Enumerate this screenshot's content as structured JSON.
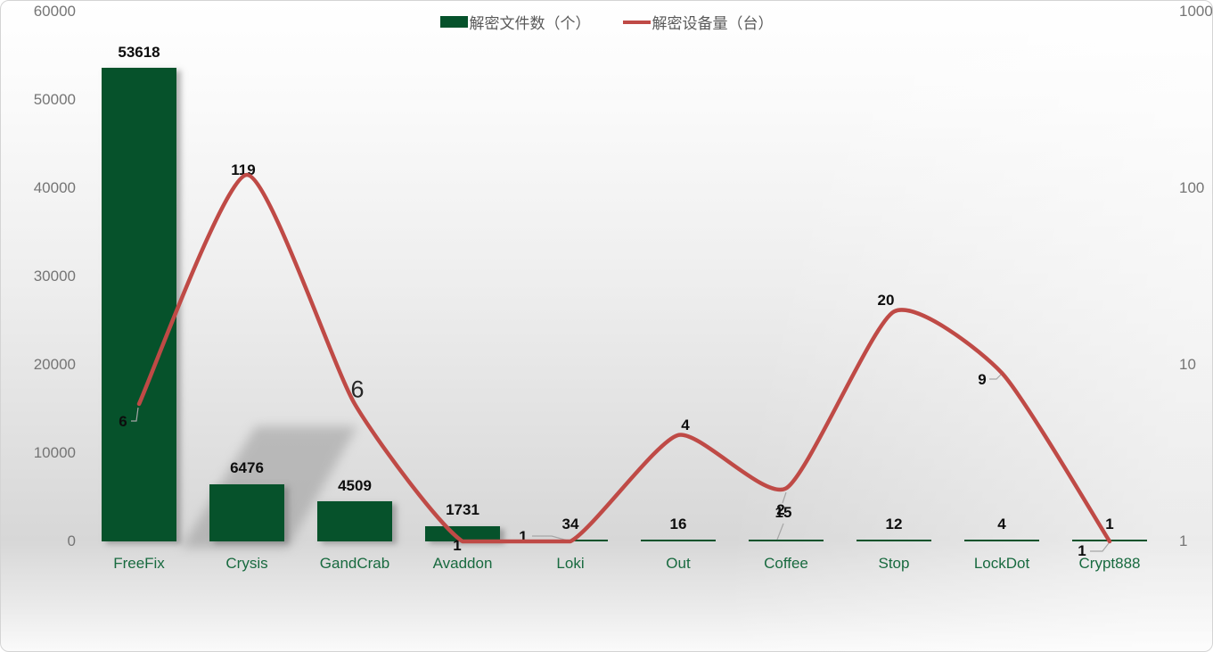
{
  "legend": {
    "items": [
      {
        "label": "解密文件数（个）",
        "swatch": "bar-swatch-green"
      },
      {
        "label": "解密设备量（台）",
        "swatch": "line-swatch-red"
      }
    ]
  },
  "colors": {
    "bar": "#06522b",
    "line": "#bf4a46",
    "category_label": "#186a3f",
    "axis_label": "#757575",
    "data_label": "#0d0d0d",
    "leader_line": "#a6a6a6"
  },
  "chart_data": {
    "type": "bar",
    "subtype": "combo-bar-line-dual-axis",
    "title": "",
    "categories": [
      "FreeFix",
      "Crysis",
      "GandCrab",
      "Avaddon",
      "Loki",
      "Out",
      "Coffee",
      "Stop",
      "LockDot",
      "Crypt888"
    ],
    "series": [
      {
        "name": "解密文件数（个）",
        "type": "bar",
        "axis": "left",
        "color": "#06522b",
        "values": [
          53618,
          6476,
          4509,
          1731,
          34,
          16,
          15,
          12,
          4,
          1
        ]
      },
      {
        "name": "解密设备量（台）",
        "type": "line",
        "axis": "right",
        "color": "#bf4a46",
        "values": [
          6,
          119,
          6,
          1,
          1,
          4,
          2,
          20,
          9,
          1
        ]
      }
    ],
    "left_axis": {
      "scale": "linear",
      "range": [
        0,
        60000
      ],
      "ticks": [
        0,
        10000,
        20000,
        30000,
        40000,
        50000,
        60000
      ]
    },
    "right_axis": {
      "scale": "log",
      "range": [
        1,
        1000
      ],
      "ticks": [
        1,
        10,
        100,
        1000
      ]
    },
    "legend_position": "top-center",
    "gridlines": false,
    "data_labels": true
  }
}
